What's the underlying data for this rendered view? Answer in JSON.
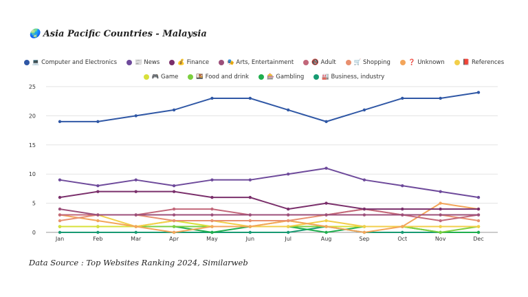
{
  "page": {
    "title": "🌏 Asia Pacific Countries - Malaysia",
    "source": "Data Source : Top Websites Ranking 2024, Similarweb"
  },
  "chart_data": {
    "type": "line",
    "title": "🌏 Asia Pacific Countries - Malaysia",
    "xlabel": "",
    "ylabel": "",
    "ylim": [
      0,
      25
    ],
    "yticks": [
      0,
      5,
      10,
      15,
      20,
      25
    ],
    "grid": true,
    "legend": "top",
    "categories": [
      "Jan",
      "Feb",
      "Mar",
      "Apr",
      "May",
      "Jun",
      "Jul",
      "Aug",
      "Sep",
      "Oct",
      "Nov",
      "Dec"
    ],
    "series": [
      {
        "name": "💻 Computer and Electronics",
        "color": "#2f57a5",
        "values": [
          19,
          19,
          20,
          21,
          23,
          23,
          21,
          19,
          21,
          23,
          23,
          24
        ]
      },
      {
        "name": "📰 News",
        "color": "#6e4a9b",
        "values": [
          9,
          8,
          9,
          8,
          9,
          9,
          10,
          11,
          9,
          8,
          7,
          6
        ]
      },
      {
        "name": "💰 Finance",
        "color": "#7a2f6b",
        "values": [
          6,
          7,
          7,
          7,
          6,
          6,
          4,
          5,
          4,
          4,
          4,
          4
        ]
      },
      {
        "name": "🎭 Arts, Entertainment",
        "color": "#9c4f7a",
        "values": [
          4,
          3,
          3,
          3,
          3,
          3,
          3,
          3,
          3,
          3,
          3,
          3
        ]
      },
      {
        "name": "🔞 Adult",
        "color": "#c2677a",
        "values": [
          3,
          3,
          3,
          4,
          4,
          3,
          3,
          3,
          4,
          3,
          2,
          3
        ]
      },
      {
        "name": "🛒 Shopping",
        "color": "#e8906f",
        "values": [
          2,
          3,
          3,
          2,
          2,
          2,
          2,
          3,
          4,
          3,
          3,
          2
        ]
      },
      {
        "name": "❓ Unknown",
        "color": "#f3a55a",
        "values": [
          3,
          2,
          1,
          0,
          1,
          1,
          2,
          1,
          0,
          1,
          5,
          4
        ]
      },
      {
        "name": "📕 References",
        "color": "#f2cf4a",
        "values": [
          3,
          3,
          1,
          2,
          2,
          1,
          1,
          2,
          1,
          1,
          1,
          1
        ]
      },
      {
        "name": "🎮 Game",
        "color": "#d8e03a",
        "values": [
          1,
          1,
          1,
          2,
          1,
          1,
          2,
          1,
          1,
          1,
          1,
          1
        ]
      },
      {
        "name": "🍱 Food and drink",
        "color": "#7ccf3f",
        "values": [
          1,
          1,
          1,
          1,
          1,
          1,
          1,
          1,
          1,
          1,
          0,
          1
        ]
      },
      {
        "name": "🎰 Gambling",
        "color": "#1fae4e",
        "values": [
          1,
          1,
          1,
          1,
          0,
          1,
          1,
          0,
          1,
          1,
          0,
          0
        ]
      },
      {
        "name": "🏭 Business, industry",
        "color": "#179a72",
        "values": [
          0,
          0,
          0,
          0,
          0,
          0,
          0,
          1,
          0,
          0,
          0,
          0
        ]
      }
    ]
  }
}
